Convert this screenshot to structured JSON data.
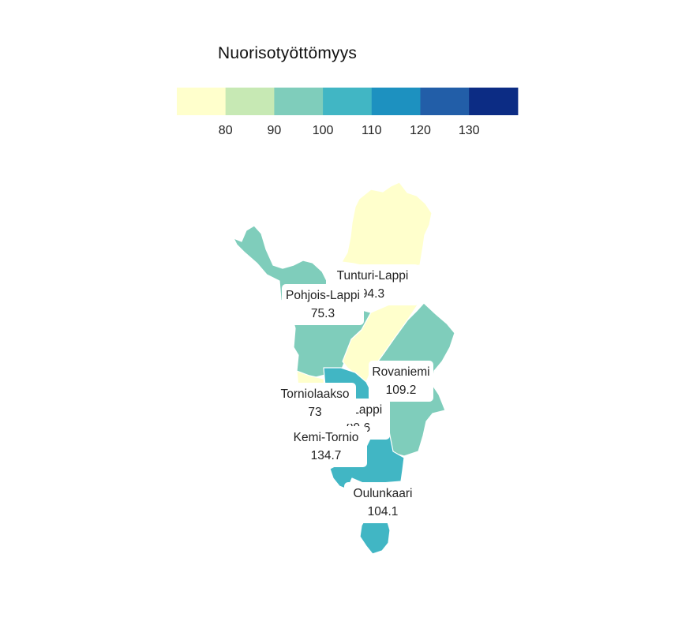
{
  "legend": {
    "title": "Nuorisotyöttömyys",
    "tick_labels": [
      "80",
      "90",
      "100",
      "110",
      "120",
      "130"
    ],
    "bins": [
      "#ffffcc",
      "#c7e9b4",
      "#7fcdbb",
      "#41b6c4",
      "#1d91c0",
      "#225ea8",
      "#0c2c84"
    ]
  },
  "regions": [
    {
      "name": "Pohjois-Lappi",
      "value": "75.3",
      "color": "#ffffcc"
    },
    {
      "name": "Tunturi-Lappi",
      "value": "94.3",
      "color": "#7fcdbb"
    },
    {
      "name": "Itä-Lappi",
      "value": "99.6",
      "color": "#7fcdbb"
    },
    {
      "name": "Torniolaakso",
      "value": "73",
      "color": "#ffffcc"
    },
    {
      "name": "Rovaniemi",
      "value": "109.2",
      "color": "#41b6c4"
    },
    {
      "name": "Kemi-Tornio",
      "value": "134.7",
      "color": "#0c2c84"
    },
    {
      "name": "Oulunkaari",
      "value": "104.1",
      "color": "#41b6c4"
    }
  ],
  "chart_data": {
    "type": "choropleth",
    "title": "Nuorisotyöttömyys",
    "areas": [
      "Pohjois-Lappi",
      "Tunturi-Lappi",
      "Itä-Lappi",
      "Torniolaakso",
      "Rovaniemi",
      "Kemi-Tornio",
      "Oulunkaari"
    ],
    "values": [
      75.3,
      94.3,
      99.6,
      73,
      109.2,
      134.7,
      104.1
    ],
    "legend_breaks": [
      80,
      90,
      100,
      110,
      120,
      130
    ]
  }
}
